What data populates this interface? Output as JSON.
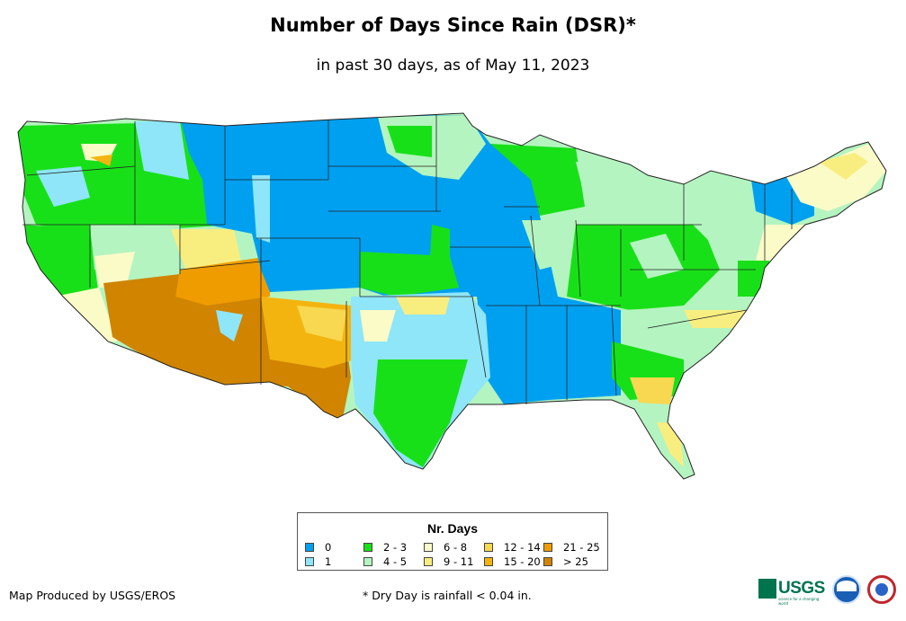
{
  "title": "Number of Days Since Rain (DSR)*",
  "subtitle": "in past 30 days, as of May 11, 2023",
  "legend": {
    "title": "Nr. Days",
    "items": [
      {
        "label": "0",
        "color": "#00a0f0"
      },
      {
        "label": "1",
        "color": "#8ee6f8"
      },
      {
        "label": "2 - 3",
        "color": "#18e018"
      },
      {
        "label": "4 - 5",
        "color": "#b4f4c0"
      },
      {
        "label": "6 - 8",
        "color": "#fbfbc8"
      },
      {
        "label": "9 - 11",
        "color": "#f8ee80"
      },
      {
        "label": "12 - 14",
        "color": "#f8d850"
      },
      {
        "label": "15 - 20",
        "color": "#f4b410"
      },
      {
        "label": "21 - 25",
        "color": "#ee9c00"
      },
      {
        "label": "> 25",
        "color": "#d08400"
      }
    ]
  },
  "footer": {
    "producer": "Map Produced by USGS/EROS",
    "note": "* Dry Day is rainfall < 0.04 in."
  },
  "logos": {
    "usgs_text": "USGS",
    "usgs_tagline": "science for a changing world"
  }
}
